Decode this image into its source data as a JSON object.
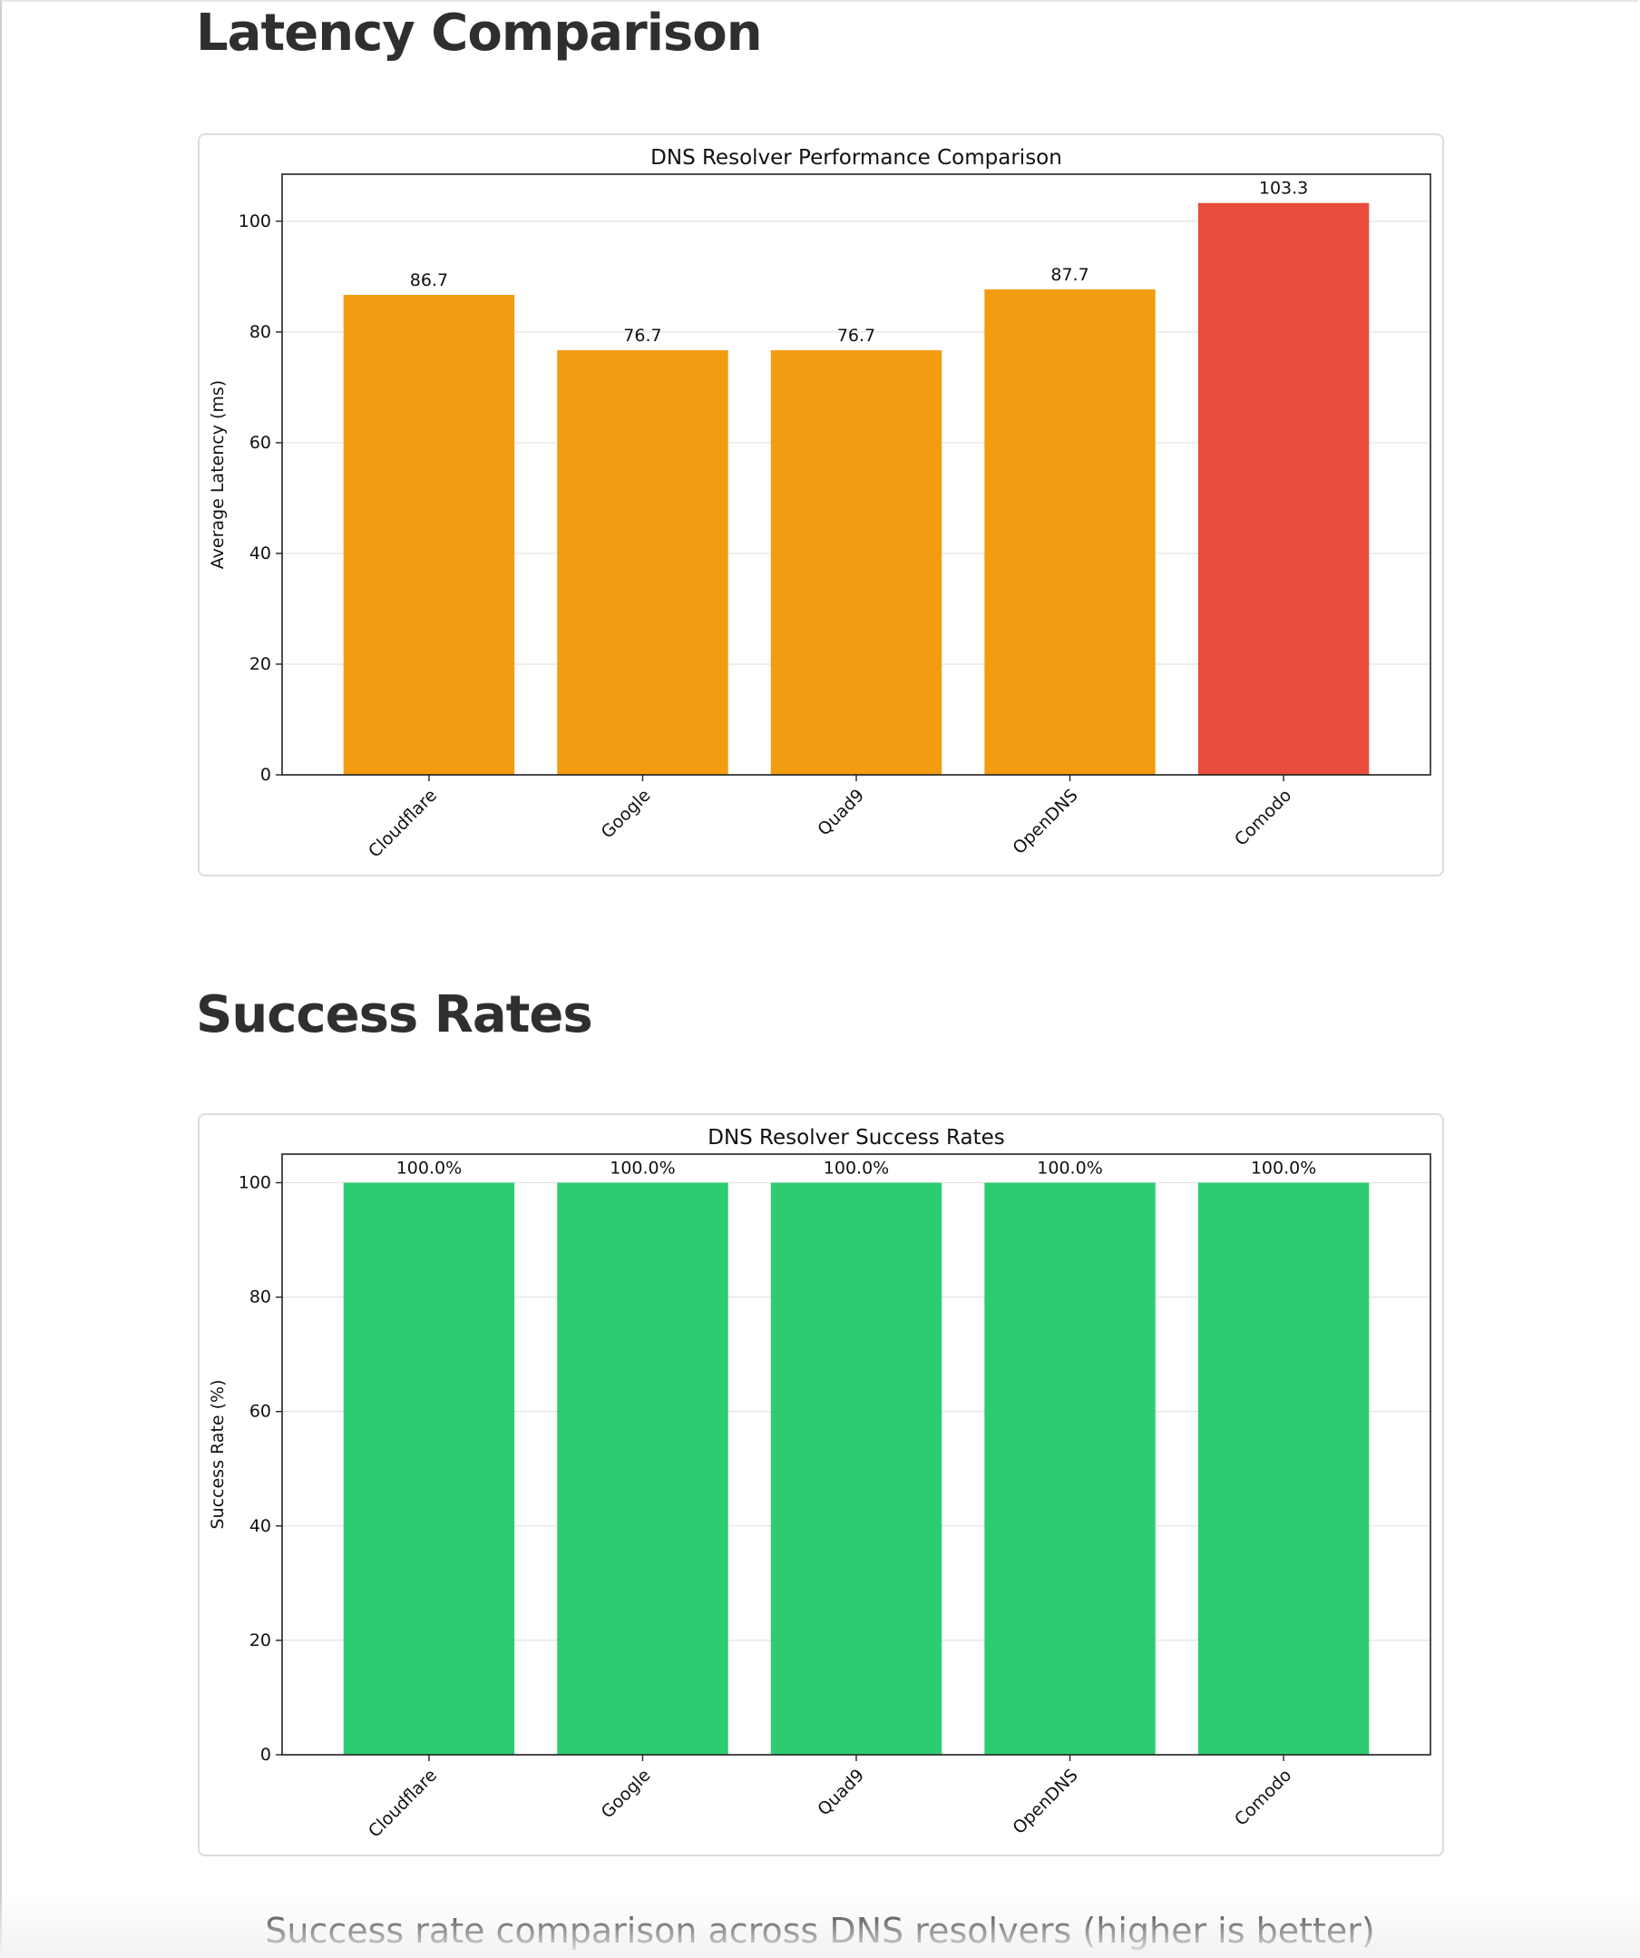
{
  "sections": [
    {
      "heading": "Latency Comparison"
    },
    {
      "heading": "Success Rates",
      "caption": "Success rate comparison across DNS resolvers (higher is better)"
    }
  ],
  "chart_data": [
    {
      "type": "bar",
      "title": "DNS Resolver Performance Comparison",
      "xlabel": "",
      "ylabel": "Average Latency (ms)",
      "categories": [
        "Cloudflare",
        "Google",
        "Quad9",
        "OpenDNS",
        "Comodo"
      ],
      "values": [
        86.7,
        76.7,
        76.7,
        87.7,
        103.3
      ],
      "value_labels": [
        "86.7",
        "76.7",
        "76.7",
        "87.7",
        "103.3"
      ],
      "colors": [
        "#f39c12",
        "#f39c12",
        "#f39c12",
        "#f39c12",
        "#e74c3c"
      ],
      "ylim": [
        0,
        108.5
      ],
      "yticks": [
        0,
        20,
        40,
        60,
        80,
        100
      ],
      "grid": true
    },
    {
      "type": "bar",
      "title": "DNS Resolver Success Rates",
      "xlabel": "",
      "ylabel": "Success Rate (%)",
      "categories": [
        "Cloudflare",
        "Google",
        "Quad9",
        "OpenDNS",
        "Comodo"
      ],
      "values": [
        100.0,
        100.0,
        100.0,
        100.0,
        100.0
      ],
      "value_labels": [
        "100.0%",
        "100.0%",
        "100.0%",
        "100.0%",
        "100.0%"
      ],
      "colors": [
        "#2ecc71",
        "#2ecc71",
        "#2ecc71",
        "#2ecc71",
        "#2ecc71"
      ],
      "ylim": [
        0,
        105
      ],
      "yticks": [
        0,
        20,
        40,
        60,
        80,
        100
      ],
      "grid": true
    }
  ]
}
